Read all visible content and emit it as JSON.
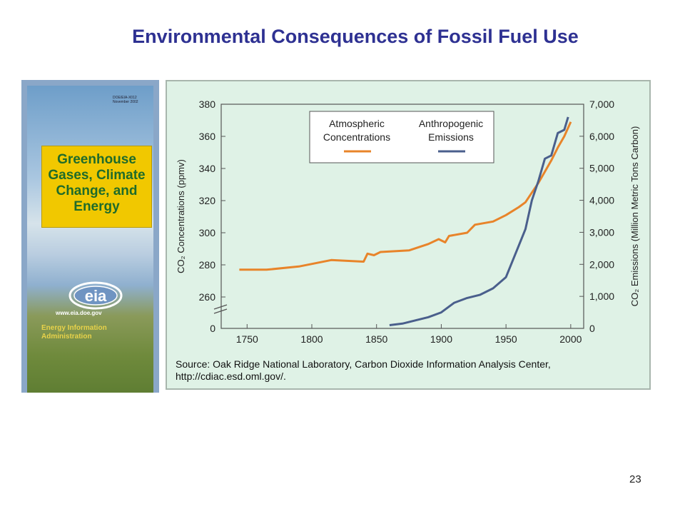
{
  "slide": {
    "title": "Environmental Consequences of Fossil Fuel Use",
    "page_number": "23"
  },
  "cover": {
    "code_text": "DOE/EIA-X012 November 2002",
    "title": "Greenhouse Gases, Climate Change, and Energy",
    "logo_text": "eia",
    "url": "www.eia.doe.gov",
    "agency": "Energy Information Administration"
  },
  "chart_data": {
    "type": "line",
    "title": "",
    "xlabel": "",
    "ylabel": "CO₂ Concentrations (ppmv)",
    "y2label": "CO₂ Emissions (Million Metric Tons Carbon)",
    "xlim": [
      1730,
      2010
    ],
    "ylim": [
      250,
      380
    ],
    "y_axis_break": true,
    "y2lim": [
      0,
      7000
    ],
    "x_ticks": [
      "1750",
      "1800",
      "1850",
      "1900",
      "1950",
      "2000"
    ],
    "y_ticks": [
      "0",
      "260",
      "280",
      "300",
      "320",
      "340",
      "360",
      "380"
    ],
    "y2_ticks": [
      "0",
      "1,000",
      "2,000",
      "3,000",
      "4,000",
      "5,000",
      "6,000",
      "7,000"
    ],
    "legend": {
      "placement": "top-center",
      "entries": [
        "Atmospheric Concentrations",
        "Anthropogenic Emissions"
      ]
    },
    "colors": {
      "concentration": "#e8842a",
      "emissions": "#4a5f8c"
    },
    "series": [
      {
        "name": "Atmospheric Concentrations",
        "axis": "left",
        "points": [
          [
            1744,
            277
          ],
          [
            1765,
            277
          ],
          [
            1790,
            279
          ],
          [
            1815,
            283
          ],
          [
            1840,
            282
          ],
          [
            1843,
            287
          ],
          [
            1848,
            286
          ],
          [
            1853,
            288
          ],
          [
            1875,
            289
          ],
          [
            1890,
            293
          ],
          [
            1898,
            296
          ],
          [
            1903,
            294
          ],
          [
            1906,
            298
          ],
          [
            1920,
            300
          ],
          [
            1926,
            305
          ],
          [
            1940,
            307
          ],
          [
            1950,
            311
          ],
          [
            1960,
            316
          ],
          [
            1965,
            319
          ],
          [
            1970,
            325
          ],
          [
            1975,
            331
          ],
          [
            1980,
            338
          ],
          [
            1985,
            345
          ],
          [
            1990,
            353
          ],
          [
            1995,
            360
          ],
          [
            2000,
            369
          ]
        ]
      },
      {
        "name": "Anthropogenic Emissions",
        "axis": "right",
        "points": [
          [
            1860,
            100
          ],
          [
            1870,
            150
          ],
          [
            1880,
            250
          ],
          [
            1890,
            350
          ],
          [
            1900,
            500
          ],
          [
            1910,
            800
          ],
          [
            1920,
            950
          ],
          [
            1930,
            1050
          ],
          [
            1940,
            1250
          ],
          [
            1950,
            1600
          ],
          [
            1955,
            2100
          ],
          [
            1960,
            2600
          ],
          [
            1965,
            3100
          ],
          [
            1970,
            4000
          ],
          [
            1975,
            4600
          ],
          [
            1980,
            5300
          ],
          [
            1985,
            5400
          ],
          [
            1990,
            6100
          ],
          [
            1995,
            6200
          ],
          [
            1998,
            6600
          ]
        ]
      }
    ],
    "source_note": "Source: Oak Ridge National Laboratory, Carbon Dioxide Information Analysis Center, http://cdiac.esd.oml.gov/."
  }
}
